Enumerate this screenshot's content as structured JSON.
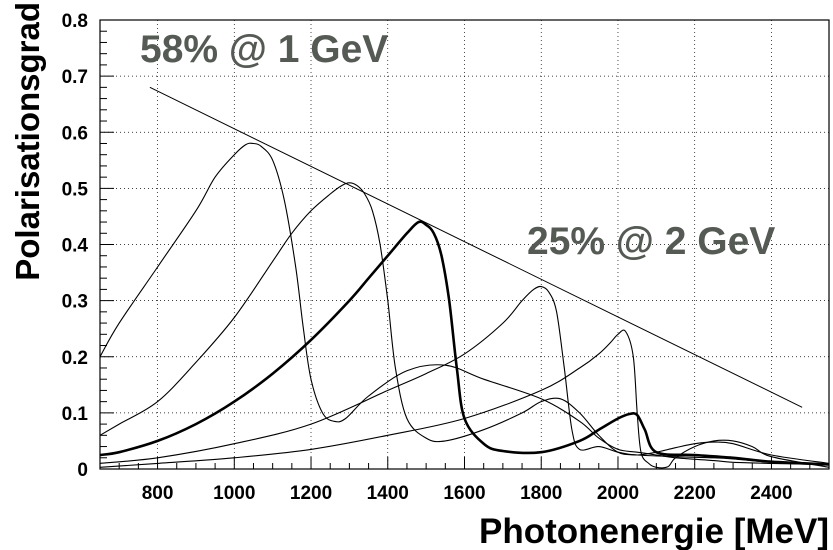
{
  "chart_data": {
    "type": "line",
    "xlabel": "Photonenergie [MeV]",
    "ylabel": "Polarisationsgrad",
    "xlim": [
      650,
      2550
    ],
    "ylim": [
      0,
      0.8
    ],
    "xticks": [
      800,
      1000,
      1200,
      1400,
      1600,
      1800,
      2000,
      2200,
      2400
    ],
    "yticks": [
      0,
      0.1,
      0.2,
      0.3,
      0.4,
      0.5,
      0.6,
      0.7,
      0.8
    ],
    "xtick_labels": [
      "800",
      "1000",
      "1200",
      "1400",
      "1600",
      "1800",
      "2000",
      "2200",
      "2400"
    ],
    "ytick_labels": [
      "0",
      "0.1",
      "0.2",
      "0.3",
      "0.4",
      "0.5",
      "0.6",
      "0.7",
      "0.8"
    ],
    "grid": "dotted",
    "annotations": [
      "58% @ 1 GeV",
      "25% @ 2 GeV"
    ],
    "series": [
      {
        "style": "envelope",
        "x": [
          780,
          2480
        ],
        "y": [
          0.68,
          0.11
        ]
      },
      {
        "style": "thin",
        "x": [
          650,
          700,
          800,
          900,
          950,
          1000,
          1030,
          1050,
          1070,
          1100,
          1130,
          1160,
          1180,
          1200,
          1230,
          1260,
          1290,
          1350,
          1450,
          1550,
          1650,
          1800,
          1900,
          1950,
          2000,
          2050,
          2100,
          2150,
          2250,
          2300,
          2400,
          2550
        ],
        "y": [
          0.2,
          0.26,
          0.36,
          0.46,
          0.52,
          0.56,
          0.578,
          0.58,
          0.575,
          0.55,
          0.48,
          0.36,
          0.25,
          0.16,
          0.1,
          0.085,
          0.09,
          0.13,
          0.175,
          0.185,
          0.16,
          0.125,
          0.085,
          0.055,
          0.035,
          0.03,
          0.025,
          0.02,
          0.015,
          0.012,
          0.01,
          0.008
        ]
      },
      {
        "style": "thin",
        "x": [
          650,
          700,
          800,
          900,
          1000,
          1100,
          1150,
          1200,
          1250,
          1280,
          1300,
          1320,
          1340,
          1360,
          1380,
          1400,
          1420,
          1450,
          1500,
          1550,
          1650,
          1750,
          1800,
          1850,
          1900,
          1950,
          2000,
          2050,
          2150,
          2250,
          2300,
          2400,
          2550
        ],
        "y": [
          0.06,
          0.08,
          0.12,
          0.19,
          0.27,
          0.37,
          0.42,
          0.46,
          0.49,
          0.505,
          0.51,
          0.505,
          0.49,
          0.46,
          0.4,
          0.3,
          0.18,
          0.09,
          0.055,
          0.05,
          0.07,
          0.1,
          0.12,
          0.125,
          0.1,
          0.06,
          0.03,
          0.025,
          0.022,
          0.02,
          0.018,
          0.012,
          0.008
        ]
      },
      {
        "style": "thick",
        "x": [
          650,
          700,
          800,
          900,
          1000,
          1100,
          1200,
          1300,
          1350,
          1400,
          1450,
          1480,
          1500,
          1520,
          1540,
          1560,
          1580,
          1600,
          1650,
          1700,
          1800,
          1900,
          1950,
          2000,
          2030,
          2050,
          2070,
          2100,
          2200,
          2300,
          2400,
          2550
        ],
        "y": [
          0.025,
          0.03,
          0.05,
          0.08,
          0.12,
          0.17,
          0.23,
          0.3,
          0.34,
          0.38,
          0.42,
          0.44,
          0.435,
          0.42,
          0.38,
          0.3,
          0.18,
          0.09,
          0.045,
          0.032,
          0.03,
          0.05,
          0.07,
          0.09,
          0.098,
          0.096,
          0.07,
          0.03,
          0.025,
          0.02,
          0.013,
          0.008
        ]
      },
      {
        "style": "thin",
        "x": [
          650,
          800,
          1000,
          1200,
          1400,
          1500,
          1600,
          1700,
          1750,
          1780,
          1800,
          1820,
          1840,
          1860,
          1880,
          1900,
          1950,
          2000,
          2050,
          2100,
          2150,
          2200,
          2250,
          2300,
          2400,
          2550
        ],
        "y": [
          0.01,
          0.02,
          0.045,
          0.08,
          0.14,
          0.17,
          0.205,
          0.26,
          0.3,
          0.32,
          0.325,
          0.315,
          0.28,
          0.18,
          0.07,
          0.035,
          0.04,
          0.03,
          0.025,
          0.03,
          0.038,
          0.045,
          0.048,
          0.045,
          0.025,
          0.01
        ]
      },
      {
        "style": "thin",
        "x": [
          650,
          800,
          1000,
          1200,
          1400,
          1600,
          1800,
          1900,
          1950,
          1980,
          2000,
          2020,
          2040,
          2050,
          2060,
          2080,
          2100,
          2130,
          2150,
          2200,
          2250,
          2300,
          2350,
          2400,
          2550
        ],
        "y": [
          0.003,
          0.01,
          0.02,
          0.035,
          0.06,
          0.09,
          0.14,
          0.18,
          0.205,
          0.225,
          0.24,
          0.245,
          0.2,
          0.1,
          0.03,
          0.01,
          0.003,
          0.004,
          0.02,
          0.04,
          0.05,
          0.05,
          0.04,
          0.022,
          0.003
        ]
      }
    ]
  }
}
